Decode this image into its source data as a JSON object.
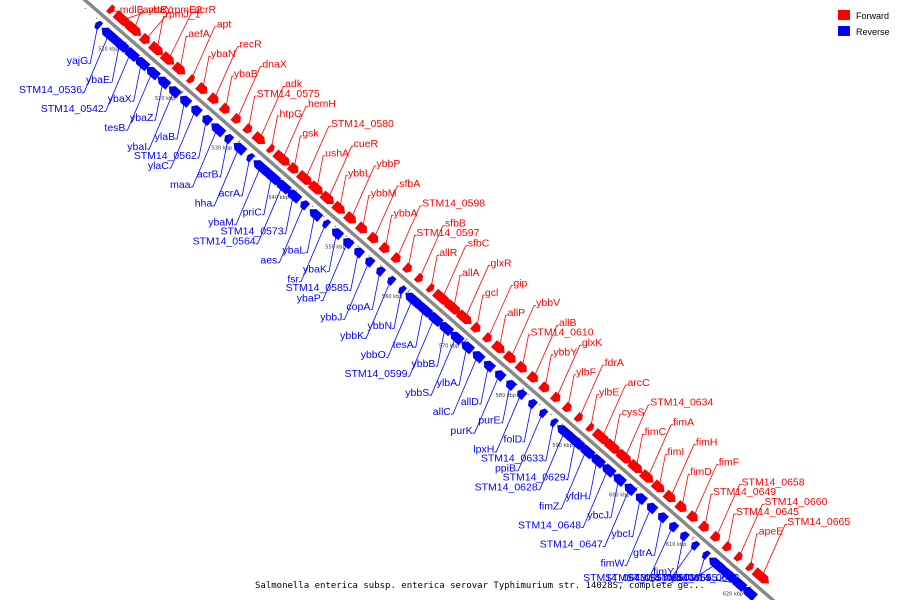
{
  "caption": "Salmonella enterica subsp. enterica serovar Typhimurium str. 14028S, complete ge...",
  "legend": [
    {
      "label": "Forward",
      "color": "#ff0000"
    },
    {
      "label": "Reverse",
      "color": "#0000ff"
    }
  ],
  "colors": {
    "forward": "#ff0000",
    "reverse": "#0000ff",
    "backbone": "#888888"
  },
  "axis": {
    "unit": "kbp",
    "ticks": [
      {
        "kbp": 510,
        "label": "510 kbp"
      },
      {
        "kbp": 520,
        "label": "520 kbp"
      },
      {
        "kbp": 530,
        "label": "530 kbp"
      },
      {
        "kbp": 540,
        "label": "540 kbp"
      },
      {
        "kbp": 550,
        "label": "550 kbp"
      },
      {
        "kbp": 560,
        "label": "560 kbp"
      },
      {
        "kbp": 570,
        "label": "570 kbp"
      },
      {
        "kbp": 580,
        "label": "580 kbp"
      },
      {
        "kbp": 590,
        "label": "590 kbp"
      },
      {
        "kbp": 600,
        "label": "600 kbp"
      },
      {
        "kbp": 610,
        "label": "610 kbp"
      },
      {
        "kbp": 620,
        "label": "620 kbp"
      }
    ]
  },
  "forward_genes": [
    "mdlB",
    "ybaY",
    "amtB",
    "rpmE2",
    "rpmJ_1",
    "acrR",
    "aefA",
    "apt",
    "ybaN",
    "recR",
    "ybaB",
    "dnaX",
    "STM14_0575",
    "adk",
    "htpG",
    "hemH",
    "gsk",
    "STM14_0580",
    "ushA",
    "cueR",
    "ybbL",
    "ybbP",
    "ybbM",
    "sfbA",
    "ybbA",
    "STM14_0598",
    "STM14_0597",
    "sfbB",
    "allR",
    "sfbC",
    "allA",
    "glxR",
    "gcl",
    "gip",
    "allP",
    "ybbV",
    "STM14_0610",
    "allB",
    "ybbY",
    "glxK",
    "ylbF",
    "fdrA",
    "ylbE",
    "arcC",
    "cysS",
    "STM14_0634",
    "fimC",
    "fimA",
    "fimI",
    "fimH",
    "fimD",
    "fimF",
    "STM14_0649",
    "STM14_0658",
    "STM14_0645",
    "STM14_0660",
    "apeE",
    "STM14_0665"
  ],
  "reverse_genes": [
    "yajG",
    "STM14_0536",
    "ybaE",
    "STM14_0542",
    "ybaX",
    "tesB",
    "ybaZ",
    "ybaI",
    "ylaB",
    "ylaC",
    "STM14_0562",
    "maa",
    "acrB",
    "hha",
    "acrA",
    "ybaM",
    "priC",
    "STM14_0564",
    "STM14_0573",
    "aes",
    "ybaL",
    "fsr",
    "ybaK",
    "ybaP",
    "STM14_0585",
    "ybbJ",
    "copA",
    "ybbK",
    "ybbN",
    "ybbO",
    "tesA",
    "STM14_0599",
    "ybbB",
    "ybbS",
    "ylbA",
    "allC",
    "allD",
    "purK",
    "purE",
    "lpxH",
    "folD",
    "ppiB",
    "STM14_0633",
    "STM14_0628",
    "STM14_0629",
    "fimZ",
    "yfdH",
    "STM14_0648",
    "ybcJ",
    "STM14_0647",
    "ybcI",
    "fimW",
    "gtrA",
    "STM14_0643",
    "fimY",
    "STM14_0657",
    "ybdG",
    "STM14_0650",
    "STM14_0655",
    "STM14_0659",
    "STM14_0662"
  ]
}
